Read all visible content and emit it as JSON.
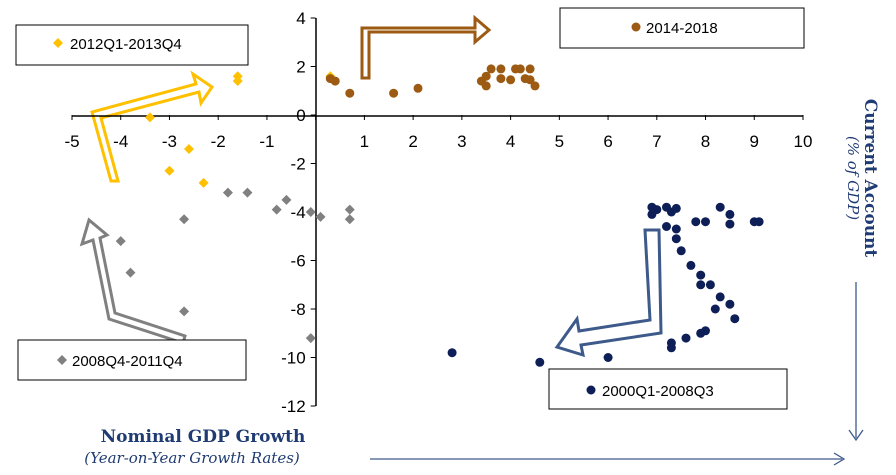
{
  "chart_data": {
    "type": "scatter",
    "xlabel": "Nominal GDP Growth",
    "xlabel_sub": "(Year-on-Year Growth Rates)",
    "ylabel": "Current Account",
    "ylabel_sub": "(% of GDP)",
    "xlim": [
      -5,
      10
    ],
    "ylim": [
      -12,
      4
    ],
    "x_ticks": [
      "-5",
      "-4",
      "-3",
      "-2",
      "-1",
      "0",
      "1",
      "2",
      "3",
      "4",
      "5",
      "6",
      "7",
      "8",
      "9",
      "10"
    ],
    "y_ticks": [
      "4",
      "2",
      "0",
      "-2",
      "-4",
      "-6",
      "-8",
      "-10",
      "-12"
    ],
    "grid": false,
    "series": [
      {
        "name": "2000Q1-2008Q3",
        "color": "#0d1f56",
        "marker": "circle",
        "points": [
          [
            6.9,
            -3.8
          ],
          [
            7.0,
            -3.9
          ],
          [
            7.2,
            -3.8
          ],
          [
            7.3,
            -4.0
          ],
          [
            7.4,
            -3.85
          ],
          [
            6.9,
            -4.1
          ],
          [
            7.2,
            -4.6
          ],
          [
            7.4,
            -4.7
          ],
          [
            7.4,
            -5.1
          ],
          [
            7.5,
            -5.6
          ],
          [
            7.7,
            -6.2
          ],
          [
            7.9,
            -6.6
          ],
          [
            7.9,
            -7.0
          ],
          [
            8.1,
            -7.0
          ],
          [
            8.3,
            -7.5
          ],
          [
            8.2,
            -8.0
          ],
          [
            8.5,
            -7.8
          ],
          [
            8.6,
            -8.4
          ],
          [
            8.0,
            -8.9
          ],
          [
            7.9,
            -9.0
          ],
          [
            7.6,
            -9.2
          ],
          [
            7.3,
            -9.4
          ],
          [
            7.3,
            -9.6
          ],
          [
            8.3,
            -3.8
          ],
          [
            8.5,
            -4.1
          ],
          [
            8.5,
            -4.5
          ],
          [
            8.0,
            -4.4
          ],
          [
            7.8,
            -4.4
          ],
          [
            9.0,
            -4.4
          ],
          [
            9.1,
            -4.4
          ],
          [
            6.0,
            -10.0
          ],
          [
            4.6,
            -10.2
          ],
          [
            2.8,
            -9.8
          ]
        ]
      },
      {
        "name": "2008Q4-2011Q4",
        "color": "#808080",
        "marker": "diamond",
        "points": [
          [
            -4.0,
            -5.2
          ],
          [
            -3.8,
            -6.5
          ],
          [
            -2.7,
            -4.3
          ],
          [
            -2.7,
            -8.1
          ],
          [
            -1.8,
            -3.2
          ],
          [
            -1.4,
            -3.2
          ],
          [
            -0.8,
            -3.9
          ],
          [
            -0.6,
            -3.5
          ],
          [
            -0.1,
            -4.0
          ],
          [
            0.1,
            -4.2
          ],
          [
            0.7,
            -3.9
          ],
          [
            0.7,
            -4.3
          ],
          [
            -0.1,
            -9.2
          ]
        ]
      },
      {
        "name": "2012Q1-2013Q4",
        "color": "#ffc000",
        "marker": "diamond",
        "points": [
          [
            -3.4,
            -0.1
          ],
          [
            -3.0,
            -2.3
          ],
          [
            -2.6,
            -1.4
          ],
          [
            -2.3,
            -2.8
          ],
          [
            -1.6,
            1.4
          ],
          [
            -1.6,
            1.6
          ],
          [
            0.3,
            1.6
          ]
        ]
      },
      {
        "name": "2014-2018",
        "color": "#9c5a12",
        "marker": "circle",
        "points": [
          [
            0.3,
            1.5
          ],
          [
            0.4,
            1.4
          ],
          [
            0.7,
            0.9
          ],
          [
            1.6,
            0.9
          ],
          [
            2.1,
            1.1
          ],
          [
            3.4,
            1.4
          ],
          [
            3.5,
            1.2
          ],
          [
            3.6,
            1.9
          ],
          [
            3.8,
            1.5
          ],
          [
            3.8,
            1.9
          ],
          [
            4.0,
            1.45
          ],
          [
            4.1,
            1.9
          ],
          [
            4.2,
            1.9
          ],
          [
            4.3,
            1.5
          ],
          [
            4.4,
            1.9
          ],
          [
            4.5,
            1.2
          ],
          [
            3.5,
            1.6
          ],
          [
            4.4,
            1.45
          ]
        ]
      }
    ]
  }
}
